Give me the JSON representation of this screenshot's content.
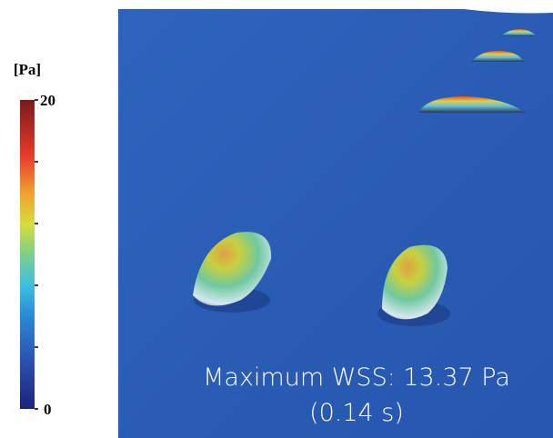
{
  "colorbar": {
    "label": "[Pa]",
    "range": [
      0,
      20
    ],
    "ticks": [
      0,
      4,
      8,
      12,
      16,
      20
    ]
  },
  "annotation": {
    "line1": "Maximum WSS: 13.37 Pa",
    "line2": "(0.14 s)"
  }
}
